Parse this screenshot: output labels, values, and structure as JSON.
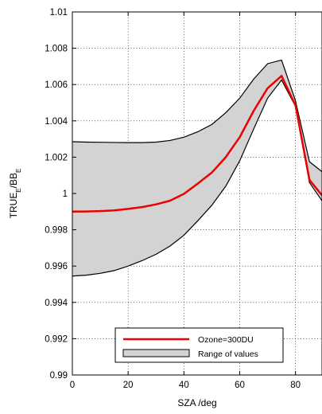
{
  "chart_data": {
    "type": "area",
    "xlabel": "SZA /deg",
    "ylabel": {
      "base1": "TRUE",
      "sub1": "E",
      "sep": "/BB",
      "sub2": "E"
    },
    "xlim": [
      0,
      89.5
    ],
    "ylim": [
      0.99,
      1.01
    ],
    "xticks": [
      0,
      20,
      40,
      60,
      80
    ],
    "xtick_labels": [
      "0",
      "20",
      "40",
      "60",
      "80"
    ],
    "yticks": [
      0.99,
      0.992,
      0.994,
      0.996,
      0.998,
      1.0,
      1.002,
      1.004,
      1.006,
      1.008,
      1.01
    ],
    "ytick_labels": [
      "0.99",
      "0.992",
      "0.994",
      "0.996",
      "0.998",
      "1",
      "1.002",
      "1.004",
      "1.006",
      "1.008",
      "1.01"
    ],
    "grid": true,
    "legend_position": "lower-center",
    "x": [
      0,
      5,
      10,
      15,
      20,
      25,
      30,
      35,
      40,
      45,
      50,
      55,
      60,
      65,
      70,
      75,
      80,
      85,
      89.5
    ],
    "series": [
      {
        "name": "Ozone=300DU",
        "color": "#ee0000",
        "values": [
          0.999,
          0.99901,
          0.99903,
          0.99907,
          0.99915,
          0.99925,
          0.9994,
          0.9996,
          0.99998,
          1.00055,
          1.00115,
          1.002,
          1.0031,
          1.00455,
          1.0058,
          1.00648,
          1.00485,
          1.00075,
          0.9999
        ]
      },
      {
        "name": "Range of values",
        "type": "band",
        "color": "#d3d3d3",
        "lower": [
          0.99545,
          0.9955,
          0.9956,
          0.99575,
          0.996,
          0.9963,
          0.99665,
          0.9971,
          0.9977,
          0.9985,
          0.99935,
          1.0004,
          1.0018,
          1.00355,
          1.00525,
          1.00625,
          1.0048,
          1.0006,
          0.9996
        ],
        "upper": [
          1.00285,
          1.00283,
          1.00282,
          1.00281,
          1.0028,
          1.0028,
          1.00283,
          1.00292,
          1.0031,
          1.0034,
          1.0038,
          1.00445,
          1.00525,
          1.0063,
          1.00715,
          1.00735,
          1.0051,
          1.00175,
          1.0012
        ]
      }
    ]
  }
}
